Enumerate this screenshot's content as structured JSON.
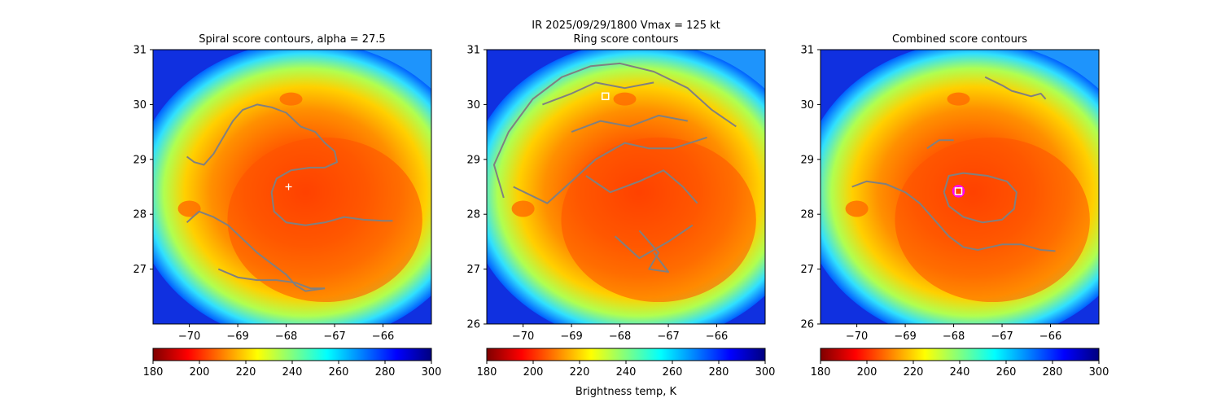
{
  "suptitle_line1": "IR  2025/09/29/1800    Vmax = 125 kt",
  "colorbar_label": "Brightness temp, K",
  "colormap": [
    "#7f0000",
    "#ff0000",
    "#ff8000",
    "#ffff00",
    "#80ff80",
    "#00ffff",
    "#0080ff",
    "#0000ff",
    "#00007f"
  ],
  "contour_color": "#808080",
  "chart_data": [
    {
      "type": "heatmap",
      "title": "Spiral score contours, alpha = 27.5",
      "xlim": [
        -70.75,
        -65.0
      ],
      "ylim": [
        26.0,
        31.0
      ],
      "x_ticks": [
        -70,
        -69,
        -68,
        -67,
        -66
      ],
      "y_ticks": [
        27,
        28,
        29,
        30,
        31
      ],
      "colorbar": {
        "min": 180,
        "max": 300,
        "ticks": [
          180,
          200,
          220,
          240,
          260,
          280,
          300
        ],
        "colormap": "jet_r"
      },
      "markers": [
        {
          "symbol": "plus",
          "lon": -67.95,
          "lat": 28.5,
          "color": "#ffffff"
        }
      ],
      "contours": [
        [
          [
            -70.05,
            29.05
          ],
          [
            -69.9,
            28.95
          ],
          [
            -69.7,
            28.9
          ],
          [
            -69.5,
            29.1
          ],
          [
            -69.3,
            29.4
          ],
          [
            -69.1,
            29.7
          ],
          [
            -68.9,
            29.9
          ],
          [
            -68.6,
            30.0
          ],
          [
            -68.3,
            29.95
          ],
          [
            -68.0,
            29.85
          ],
          [
            -67.7,
            29.6
          ],
          [
            -67.4,
            29.5
          ],
          [
            -67.2,
            29.3
          ],
          [
            -67.0,
            29.15
          ],
          [
            -66.95,
            28.95
          ],
          [
            -67.2,
            28.85
          ],
          [
            -67.5,
            28.85
          ],
          [
            -67.9,
            28.8
          ],
          [
            -68.2,
            28.65
          ],
          [
            -68.3,
            28.4
          ],
          [
            -68.25,
            28.05
          ],
          [
            -68.0,
            27.85
          ],
          [
            -67.6,
            27.8
          ],
          [
            -67.2,
            27.85
          ],
          [
            -66.8,
            27.95
          ],
          [
            -66.4,
            27.9
          ],
          [
            -66.0,
            27.88
          ],
          [
            -65.8,
            27.88
          ]
        ],
        [
          [
            -70.05,
            27.85
          ],
          [
            -69.8,
            28.05
          ],
          [
            -69.5,
            27.95
          ],
          [
            -69.2,
            27.8
          ],
          [
            -68.9,
            27.55
          ],
          [
            -68.6,
            27.3
          ],
          [
            -68.3,
            27.1
          ],
          [
            -68.0,
            26.9
          ],
          [
            -67.8,
            26.7
          ],
          [
            -67.6,
            26.6
          ],
          [
            -67.2,
            26.65
          ]
        ],
        [
          [
            -69.4,
            27.0
          ],
          [
            -69.0,
            26.85
          ],
          [
            -68.6,
            26.8
          ],
          [
            -68.2,
            26.8
          ],
          [
            -67.8,
            26.75
          ],
          [
            -67.5,
            26.65
          ],
          [
            -67.2,
            26.65
          ]
        ]
      ]
    },
    {
      "type": "heatmap",
      "title": "Ring score contours",
      "xlim": [
        -70.75,
        -65.0
      ],
      "ylim": [
        26.0,
        31.0
      ],
      "x_ticks": [
        -70,
        -69,
        -68,
        -67,
        -66
      ],
      "y_ticks": [
        26,
        27,
        28,
        29,
        30,
        31
      ],
      "colorbar": {
        "min": 180,
        "max": 300,
        "ticks": [
          180,
          200,
          220,
          240,
          260,
          280,
          300
        ],
        "colormap": "jet_r"
      },
      "markers": [
        {
          "symbol": "square",
          "lon": -68.3,
          "lat": 30.15,
          "color": "#ffffff"
        }
      ],
      "contours": [
        [
          [
            -70.4,
            28.3
          ],
          [
            -70.6,
            28.9
          ],
          [
            -70.3,
            29.5
          ],
          [
            -69.8,
            30.1
          ],
          [
            -69.2,
            30.5
          ],
          [
            -68.6,
            30.7
          ],
          [
            -68.0,
            30.75
          ],
          [
            -67.3,
            30.6
          ],
          [
            -66.6,
            30.3
          ],
          [
            -66.1,
            29.9
          ],
          [
            -65.6,
            29.6
          ]
        ],
        [
          [
            -70.2,
            28.5
          ],
          [
            -69.5,
            28.2
          ],
          [
            -69.0,
            28.6
          ],
          [
            -68.5,
            29.0
          ],
          [
            -67.9,
            29.3
          ],
          [
            -67.4,
            29.2
          ],
          [
            -66.9,
            29.2
          ],
          [
            -66.2,
            29.4
          ]
        ],
        [
          [
            -69.0,
            29.5
          ],
          [
            -68.4,
            29.7
          ],
          [
            -67.8,
            29.6
          ],
          [
            -67.2,
            29.8
          ],
          [
            -66.6,
            29.7
          ]
        ],
        [
          [
            -69.6,
            30.0
          ],
          [
            -69.0,
            30.2
          ],
          [
            -68.5,
            30.4
          ],
          [
            -67.9,
            30.3
          ],
          [
            -67.3,
            30.4
          ]
        ],
        [
          [
            -68.7,
            28.7
          ],
          [
            -68.2,
            28.4
          ],
          [
            -67.6,
            28.6
          ],
          [
            -67.1,
            28.8
          ],
          [
            -66.7,
            28.5
          ],
          [
            -66.4,
            28.2
          ]
        ],
        [
          [
            -67.6,
            27.7
          ],
          [
            -67.2,
            27.3
          ],
          [
            -67.4,
            27.0
          ],
          [
            -67.0,
            26.95
          ],
          [
            -67.3,
            27.3
          ]
        ],
        [
          [
            -68.1,
            27.6
          ],
          [
            -67.6,
            27.2
          ],
          [
            -67.0,
            27.5
          ],
          [
            -66.5,
            27.8
          ]
        ]
      ]
    },
    {
      "type": "heatmap",
      "title": "Combined score contours",
      "xlim": [
        -70.75,
        -65.0
      ],
      "ylim": [
        26.0,
        31.0
      ],
      "x_ticks": [
        -70,
        -69,
        -68,
        -67,
        -66
      ],
      "y_ticks": [
        26,
        27,
        28,
        29,
        30,
        31
      ],
      "colorbar": {
        "min": 180,
        "max": 300,
        "ticks": [
          180,
          200,
          220,
          240,
          260,
          280,
          300
        ],
        "colormap": "jet_r"
      },
      "markers": [
        {
          "symbol": "circle",
          "lon": -67.9,
          "lat": 28.42,
          "color": "#ff00ff"
        },
        {
          "symbol": "square",
          "lon": -67.9,
          "lat": 28.42,
          "color": "#ffffff"
        }
      ],
      "contours": [
        [
          [
            -67.35,
            30.5
          ],
          [
            -67.0,
            30.35
          ],
          [
            -66.8,
            30.25
          ],
          [
            -66.6,
            30.2
          ],
          [
            -66.4,
            30.15
          ],
          [
            -66.2,
            30.2
          ],
          [
            -66.1,
            30.1
          ]
        ],
        [
          [
            -68.55,
            29.2
          ],
          [
            -68.3,
            29.35
          ],
          [
            -68.0,
            29.35
          ]
        ],
        [
          [
            -68.2,
            28.4
          ],
          [
            -68.1,
            28.7
          ],
          [
            -67.8,
            28.75
          ],
          [
            -67.3,
            28.7
          ],
          [
            -66.9,
            28.6
          ],
          [
            -66.7,
            28.4
          ],
          [
            -66.75,
            28.1
          ],
          [
            -67.0,
            27.9
          ],
          [
            -67.4,
            27.85
          ],
          [
            -67.8,
            27.95
          ],
          [
            -68.1,
            28.15
          ],
          [
            -68.2,
            28.4
          ]
        ],
        [
          [
            -70.1,
            28.5
          ],
          [
            -69.8,
            28.6
          ],
          [
            -69.4,
            28.55
          ],
          [
            -69.0,
            28.4
          ],
          [
            -68.7,
            28.2
          ],
          [
            -68.4,
            27.9
          ],
          [
            -68.1,
            27.6
          ],
          [
            -67.8,
            27.4
          ],
          [
            -67.5,
            27.35
          ],
          [
            -67.0,
            27.45
          ],
          [
            -66.6,
            27.45
          ],
          [
            -66.2,
            27.35
          ],
          [
            -65.9,
            27.33
          ]
        ]
      ]
    }
  ]
}
